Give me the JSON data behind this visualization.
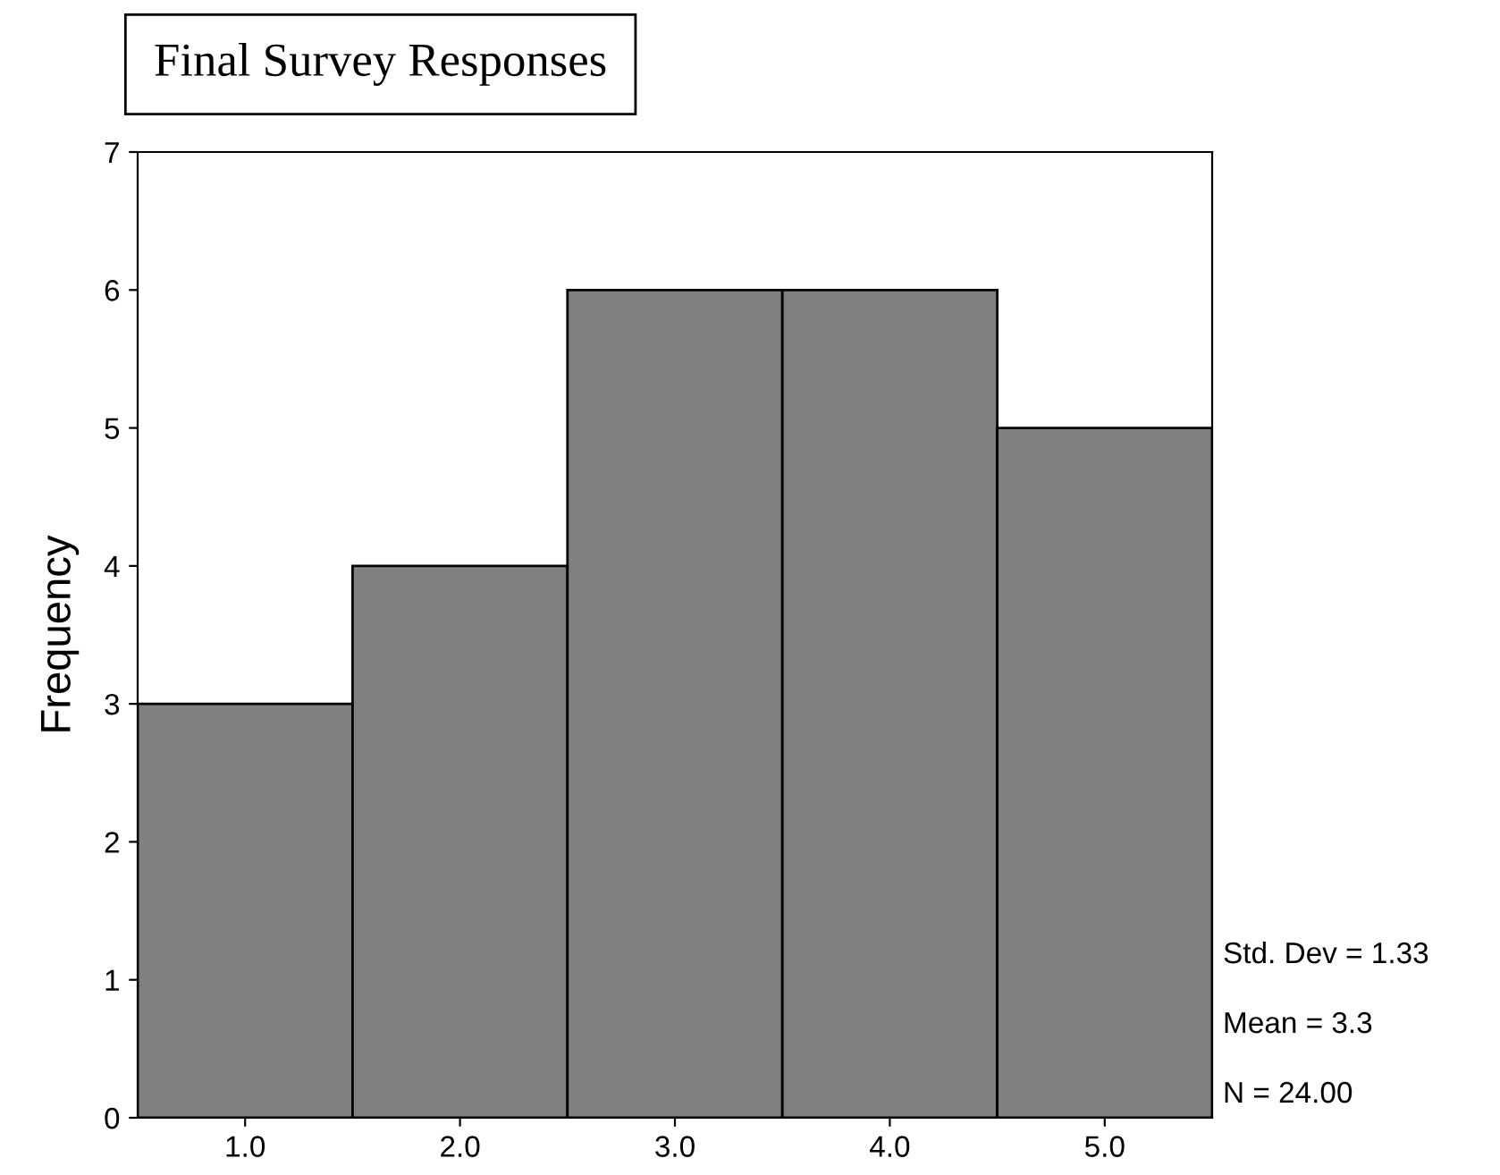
{
  "chart_data": {
    "type": "histogram",
    "title": "Final Survey Responses",
    "ylabel": "Frequency",
    "bins": [
      0.5,
      1.5,
      2.5,
      3.5,
      4.5,
      5.5
    ],
    "values": [
      3,
      4,
      6,
      6,
      5
    ],
    "color": "#808080",
    "xlim": [
      0.5,
      5.5
    ],
    "xticks": [
      {
        "value": 1,
        "label": "1.0"
      },
      {
        "value": 2,
        "label": "2.0"
      },
      {
        "value": 3,
        "label": "3.0"
      },
      {
        "value": 4,
        "label": "4.0"
      },
      {
        "value": 5,
        "label": "5.0"
      }
    ],
    "ylim": [
      0,
      7
    ],
    "yticks": [
      0,
      1,
      2,
      3,
      4,
      5,
      6,
      7
    ],
    "annotations": [
      "Std. Dev = 1.33",
      "Mean = 3.3",
      "N = 24.00"
    ],
    "grid": false
  }
}
